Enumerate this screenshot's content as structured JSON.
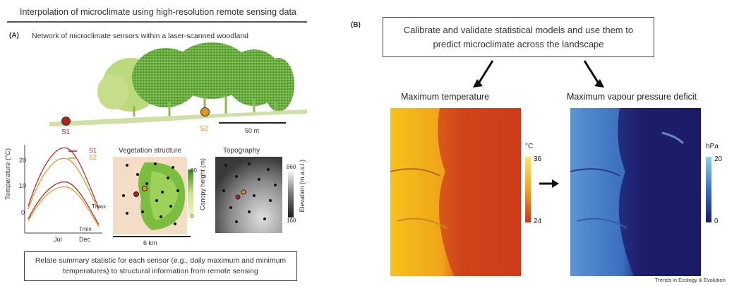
{
  "title": "Interpolation of microclimate using high-resolution remote sensing data",
  "panel_a": {
    "label": "(A)",
    "subtitle": "Network of microclimate sensors within a laser-scanned woodland",
    "sensor1": "S1",
    "sensor2": "S2",
    "scale_bar": "50 m",
    "chart": {
      "ylabel": "Temperature (°C)",
      "yticks": [
        "0",
        "10",
        "20"
      ],
      "xticks": [
        "Jul",
        "Dec"
      ],
      "legend": [
        "S1",
        "S2"
      ],
      "tmax_label": "Tmax",
      "tmin_label": "Tmin"
    },
    "vegetation": {
      "title": "Vegetation structure",
      "cbar_label": "Canopy height (m)",
      "cbar_max": "80",
      "cbar_min": "0",
      "scale": "6 km"
    },
    "topography": {
      "title": "Topography",
      "cbar_label": "Elevation (m a.s.l.)",
      "cbar_max": "860",
      "cbar_min": "160"
    },
    "caption": "Relate summary statistic for each sensor (e.g., daily maximum and minimum temperatures) to structural information from remote sensing"
  },
  "panel_b": {
    "label": "(B)",
    "caption": "Calibrate and validate statistical models and use them to predict microclimate across the landscape",
    "map1": {
      "title": "Maximum temperature",
      "unit": "°C",
      "cbar_max": "36",
      "cbar_min": "24"
    },
    "map2": {
      "title": "Maximum vapour pressure deficit",
      "unit": "hPa",
      "cbar_max": "20",
      "cbar_min": "0"
    }
  },
  "credit": "Trends in Ecology & Evolution",
  "colors": {
    "s1": "#b22222",
    "s2": "#e8921f",
    "canopy": "#6fae3a",
    "temp_hot": "#c8301c",
    "temp_cool": "#f2c71a",
    "vpd_dark": "#1c1a6e",
    "vpd_light": "#4f8fd0"
  }
}
